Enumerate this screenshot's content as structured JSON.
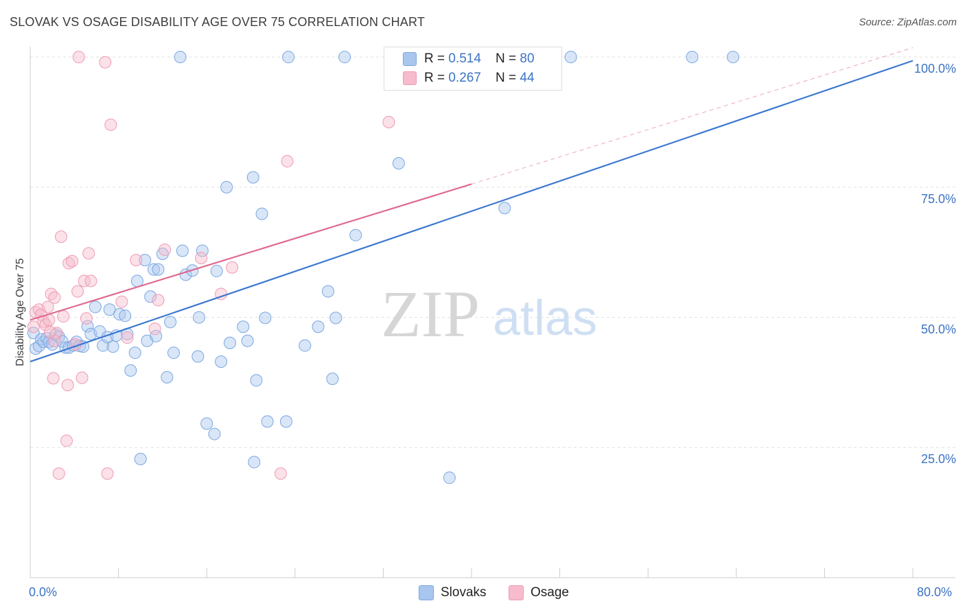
{
  "header": {
    "title": "SLOVAK VS OSAGE DISABILITY AGE OVER 75 CORRELATION CHART",
    "source": "Source: ZipAtlas.com"
  },
  "watermark": {
    "zip": "ZIP",
    "atlas": "atlas"
  },
  "legend": {
    "rows": [
      {
        "r_label": "R = ",
        "r_value": "0.514",
        "n_label": "N = ",
        "n_value": "80",
        "color": "#a9c6ee"
      },
      {
        "r_label": "R = ",
        "r_value": "0.267",
        "n_label": "N = ",
        "n_value": "44",
        "color": "#f6bccd"
      }
    ]
  },
  "bottom_legend": [
    {
      "label": "Slovaks",
      "color": "#a9c6ee"
    },
    {
      "label": "Osage",
      "color": "#f6bccd"
    }
  ],
  "colors": {
    "blue_line": "#3c78d0",
    "pink_line": "#e0698f",
    "blue_fill": "rgba(170,200,240,0.45)",
    "blue_stroke": "#7aa6e0",
    "pink_fill": "rgba(246,188,205,0.45)",
    "pink_stroke": "#ee9ab3",
    "grid": "#e0e0e0",
    "tick_label": "#3b73c4"
  },
  "chart_data": {
    "type": "scatter",
    "title": "SLOVAK VS OSAGE DISABILITY AGE OVER 75 CORRELATION CHART",
    "xlabel": "",
    "ylabel": "Disability Age Over 75",
    "xlim": [
      0,
      80
    ],
    "ylim": [
      0,
      102
    ],
    "x_tick_labels": [
      "0.0%",
      "80.0%"
    ],
    "y_ticks": [
      25,
      50,
      75,
      100
    ],
    "y_tick_labels": [
      "25.0%",
      "50.0%",
      "75.0%",
      "100.0%"
    ],
    "grid": true,
    "legend_position": "top-center",
    "series": [
      {
        "name": "Slovaks",
        "r": 0.514,
        "n": 80,
        "trend": {
          "x": [
            0,
            80
          ],
          "y": [
            41.5,
            99.3
          ]
        },
        "points": [
          [
            0.3,
            47
          ],
          [
            0.5,
            44
          ],
          [
            0.8,
            44.5
          ],
          [
            1.0,
            45.8
          ],
          [
            1.2,
            45.3
          ],
          [
            1.5,
            46
          ],
          [
            1.7,
            45.3
          ],
          [
            2.0,
            44.8
          ],
          [
            2.3,
            46.7
          ],
          [
            2.6,
            46.3
          ],
          [
            2.9,
            45.4
          ],
          [
            3.2,
            44.2
          ],
          [
            3.5,
            44.2
          ],
          [
            3.9,
            44.6
          ],
          [
            4.2,
            45.3
          ],
          [
            4.5,
            44.5
          ],
          [
            4.8,
            44.4
          ],
          [
            5.2,
            48.3
          ],
          [
            5.5,
            46.8
          ],
          [
            5.9,
            52
          ],
          [
            6.3,
            47.3
          ],
          [
            6.6,
            44.6
          ],
          [
            7.0,
            46.2
          ],
          [
            7.2,
            51.5
          ],
          [
            7.5,
            44.4
          ],
          [
            7.8,
            46.5
          ],
          [
            8.1,
            50.6
          ],
          [
            8.6,
            50.3
          ],
          [
            8.8,
            46.8
          ],
          [
            9.1,
            39.8
          ],
          [
            9.5,
            43.2
          ],
          [
            9.7,
            57
          ],
          [
            10.0,
            22.8
          ],
          [
            10.4,
            61
          ],
          [
            10.6,
            45.5
          ],
          [
            10.9,
            54
          ],
          [
            11.2,
            59.2
          ],
          [
            11.4,
            46.4
          ],
          [
            11.6,
            59.2
          ],
          [
            12.0,
            62.2
          ],
          [
            12.4,
            38.5
          ],
          [
            12.7,
            49.1
          ],
          [
            13.0,
            43.2
          ],
          [
            13.6,
            100
          ],
          [
            13.8,
            62.8
          ],
          [
            14.1,
            58.2
          ],
          [
            14.7,
            59
          ],
          [
            15.2,
            42.5
          ],
          [
            15.6,
            62.8
          ],
          [
            15.3,
            50
          ],
          [
            16.0,
            29.6
          ],
          [
            16.7,
            27.6
          ],
          [
            16.9,
            58.9
          ],
          [
            17.3,
            41.5
          ],
          [
            17.8,
            75
          ],
          [
            18.1,
            45.1
          ],
          [
            19.3,
            48.2
          ],
          [
            19.7,
            45.5
          ],
          [
            20.2,
            76.9
          ],
          [
            20.5,
            37.9
          ],
          [
            20.3,
            22.2
          ],
          [
            21.0,
            69.9
          ],
          [
            21.5,
            30
          ],
          [
            21.3,
            49.9
          ],
          [
            23.2,
            30
          ],
          [
            23.4,
            100
          ],
          [
            24.9,
            44.6
          ],
          [
            26.1,
            48.2
          ],
          [
            27.0,
            55
          ],
          [
            27.4,
            38.2
          ],
          [
            27.7,
            49.9
          ],
          [
            28.5,
            100
          ],
          [
            29.5,
            65.8
          ],
          [
            33.4,
            79.6
          ],
          [
            38.0,
            19.2
          ],
          [
            43.0,
            71
          ],
          [
            43.9,
            100
          ],
          [
            49.0,
            100
          ],
          [
            60.0,
            100
          ],
          [
            63.7,
            100
          ]
        ]
      },
      {
        "name": "Osage",
        "r": 0.267,
        "n": 44,
        "trend": {
          "x": [
            0,
            40
          ],
          "y": [
            49.5,
            75.6
          ]
        },
        "trend_extension": {
          "x": [
            40,
            80
          ],
          "y": [
            75.6,
            101.8
          ]
        },
        "points": [
          [
            0.3,
            48.2
          ],
          [
            0.5,
            51
          ],
          [
            0.8,
            51.5
          ],
          [
            1.0,
            50.5
          ],
          [
            1.2,
            49.2
          ],
          [
            1.4,
            48.6
          ],
          [
            1.6,
            52
          ],
          [
            1.7,
            49.5
          ],
          [
            1.9,
            54.5
          ],
          [
            2.1,
            38.3
          ],
          [
            2.2,
            53.8
          ],
          [
            2.4,
            47
          ],
          [
            2.6,
            20
          ],
          [
            2.8,
            65.5
          ],
          [
            3.0,
            50.2
          ],
          [
            3.3,
            26.3
          ],
          [
            3.4,
            37
          ],
          [
            3.5,
            60.4
          ],
          [
            3.8,
            60.8
          ],
          [
            4.1,
            44.8
          ],
          [
            4.3,
            55
          ],
          [
            4.4,
            100
          ],
          [
            4.7,
            38.4
          ],
          [
            4.9,
            57
          ],
          [
            5.1,
            49.8
          ],
          [
            5.3,
            62.3
          ],
          [
            5.5,
            57
          ],
          [
            6.8,
            99
          ],
          [
            7.0,
            20
          ],
          [
            7.3,
            87
          ],
          [
            8.3,
            53
          ],
          [
            8.8,
            46.1
          ],
          [
            9.6,
            61
          ],
          [
            11.3,
            47.8
          ],
          [
            11.6,
            53.3
          ],
          [
            12.2,
            63
          ],
          [
            17.3,
            54.5
          ],
          [
            18.3,
            59.6
          ],
          [
            22.7,
            20
          ],
          [
            23.3,
            80
          ],
          [
            32.5,
            87.5
          ],
          [
            15.5,
            61.4
          ],
          [
            2.2,
            45.5
          ],
          [
            1.8,
            47.2
          ]
        ]
      }
    ]
  }
}
